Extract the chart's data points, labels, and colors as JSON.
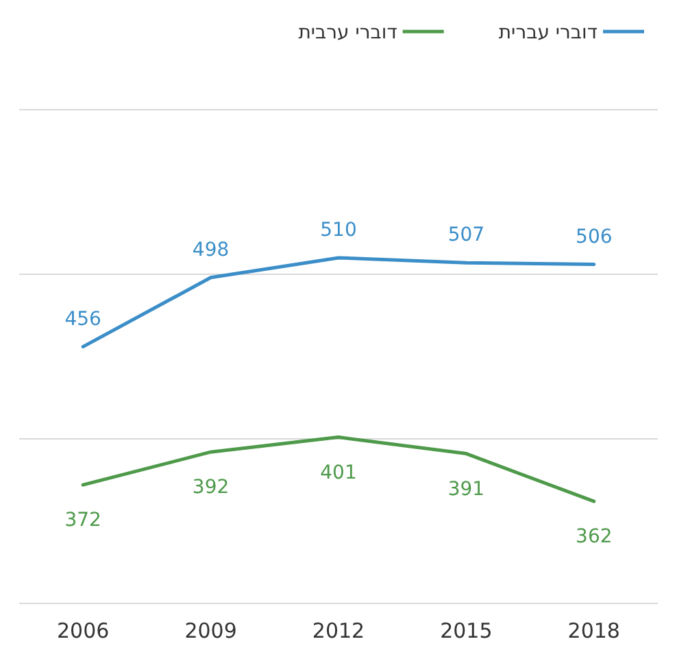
{
  "chart_data": {
    "type": "line",
    "categories": [
      "2006",
      "2009",
      "2012",
      "2015",
      "2018"
    ],
    "series": [
      {
        "name": "דוברי עברית",
        "color": "#3b8ec8",
        "values": [
          456,
          498,
          510,
          507,
          506
        ]
      },
      {
        "name": "דוברי ערבית",
        "color": "#4e9a4a",
        "values": [
          372,
          392,
          401,
          391,
          362
        ]
      }
    ],
    "ylim": [
      300,
      600
    ],
    "yticks": [
      {
        "value": 300,
        "label": null
      },
      {
        "value": 400,
        "label": null
      },
      {
        "value": 500,
        "label": null
      },
      {
        "value": 600,
        "label": null
      }
    ],
    "grid": "y",
    "legend": "top",
    "data_labels": true,
    "tick_labels": "x",
    "marker": "none",
    "line_style": "solid"
  }
}
